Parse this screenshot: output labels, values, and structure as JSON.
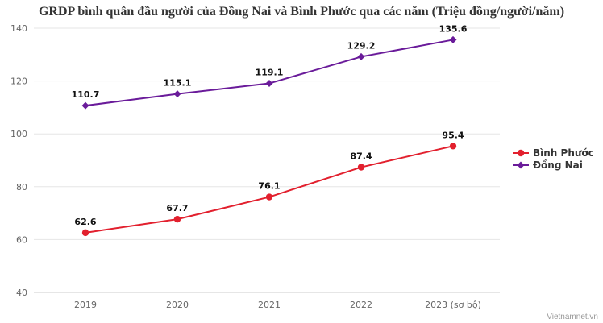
{
  "chart_data": {
    "type": "line",
    "title": "GRDP bình quân đầu người của Đồng Nai và Bình Phước qua các năm (Triệu đồng/người/năm)",
    "categories": [
      "2019",
      "2020",
      "2021",
      "2022",
      "2023 (sơ bộ)"
    ],
    "series": [
      {
        "name": "Bình Phước",
        "values": [
          62.6,
          67.7,
          76.1,
          87.4,
          95.4
        ],
        "color": "#e2202e",
        "marker": "circle"
      },
      {
        "name": "Đồng Nai",
        "values": [
          110.7,
          115.1,
          119.1,
          129.2,
          135.6
        ],
        "color": "#6a1b9a",
        "marker": "diamond"
      }
    ],
    "yticks": [
      40,
      60,
      80,
      100,
      120,
      140
    ],
    "ylim": [
      40,
      140
    ],
    "grid": true,
    "legend": "right",
    "data_label_decimals": 1
  },
  "credit": "Vietnamnet.vn"
}
